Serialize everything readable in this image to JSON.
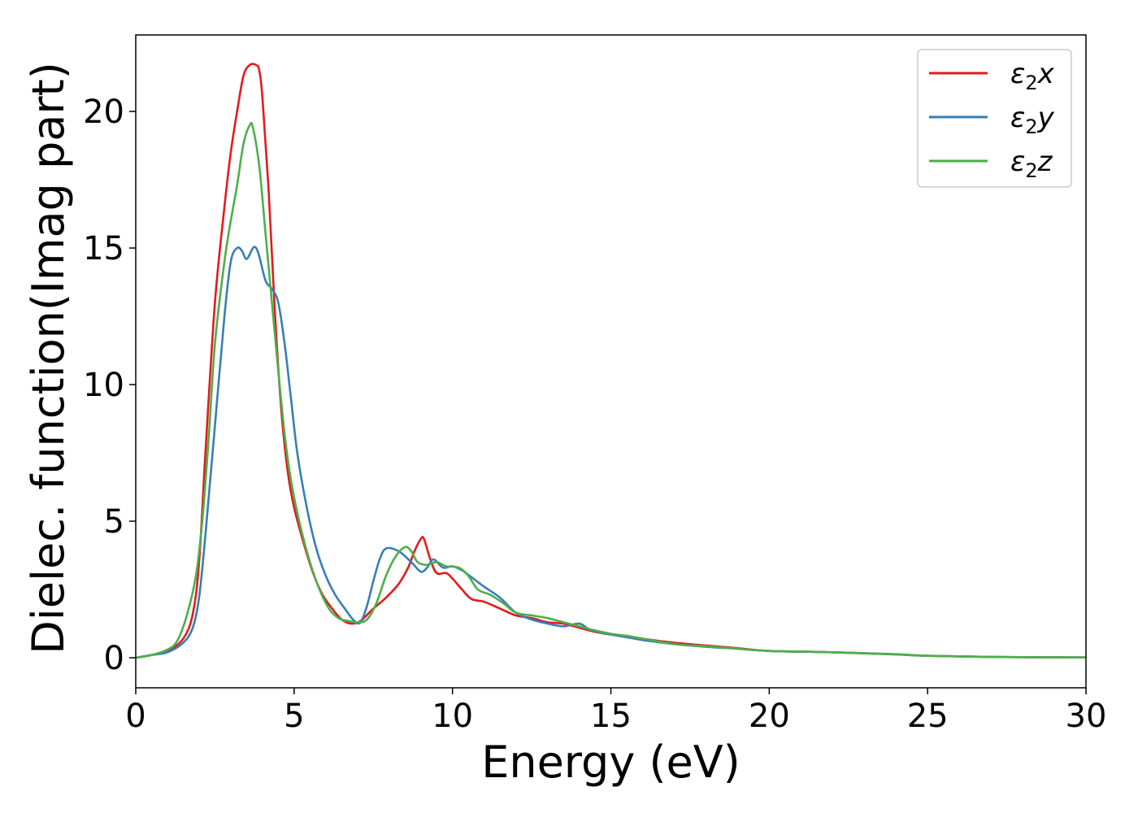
{
  "chart_data": {
    "type": "line",
    "title": "",
    "xlabel": "Energy (eV)",
    "ylabel": "Dielec. function(Imag part)",
    "xlim": [
      0,
      30
    ],
    "ylim": [
      -1.1,
      22.8
    ],
    "xticks": [
      0,
      5,
      10,
      15,
      20,
      25,
      30
    ],
    "yticks": [
      0,
      5,
      10,
      15,
      20
    ],
    "xtick_labels": [
      "0",
      "5",
      "10",
      "15",
      "20",
      "25",
      "30"
    ],
    "ytick_labels": [
      "0",
      "5",
      "10",
      "15",
      "20"
    ],
    "grid": false,
    "legend_position": "top-right",
    "series": [
      {
        "name": "ε2x",
        "name_main": "ε",
        "name_sub": "2",
        "name_tail": "x",
        "color": "#e41a1c",
        "points": [
          [
            0,
            0
          ],
          [
            0.5,
            0.1
          ],
          [
            1.0,
            0.25
          ],
          [
            1.5,
            0.7
          ],
          [
            1.8,
            1.6
          ],
          [
            2.0,
            3.5
          ],
          [
            2.2,
            7.5
          ],
          [
            2.5,
            13.0
          ],
          [
            2.8,
            16.5
          ],
          [
            3.0,
            18.5
          ],
          [
            3.2,
            20.0
          ],
          [
            3.4,
            21.3
          ],
          [
            3.6,
            21.7
          ],
          [
            3.8,
            21.7
          ],
          [
            3.9,
            21.5
          ],
          [
            4.0,
            20.5
          ],
          [
            4.2,
            17.0
          ],
          [
            4.4,
            12.5
          ],
          [
            4.6,
            9.0
          ],
          [
            4.8,
            6.8
          ],
          [
            5.0,
            5.5
          ],
          [
            5.3,
            4.2
          ],
          [
            5.6,
            3.1
          ],
          [
            5.9,
            2.3
          ],
          [
            6.2,
            1.8
          ],
          [
            6.5,
            1.4
          ],
          [
            6.8,
            1.25
          ],
          [
            7.1,
            1.35
          ],
          [
            7.5,
            1.8
          ],
          [
            7.9,
            2.2
          ],
          [
            8.3,
            2.7
          ],
          [
            8.6,
            3.3
          ],
          [
            8.8,
            3.9
          ],
          [
            9.0,
            4.35
          ],
          [
            9.1,
            4.35
          ],
          [
            9.3,
            3.6
          ],
          [
            9.5,
            3.1
          ],
          [
            9.8,
            3.1
          ],
          [
            10.0,
            2.9
          ],
          [
            10.3,
            2.5
          ],
          [
            10.6,
            2.15
          ],
          [
            11.0,
            2.05
          ],
          [
            11.5,
            1.8
          ],
          [
            12.0,
            1.55
          ],
          [
            12.5,
            1.45
          ],
          [
            13.0,
            1.3
          ],
          [
            13.5,
            1.25
          ],
          [
            14.0,
            1.1
          ],
          [
            14.5,
            0.95
          ],
          [
            15.0,
            0.85
          ],
          [
            15.5,
            0.8
          ],
          [
            16.0,
            0.7
          ],
          [
            17.0,
            0.55
          ],
          [
            18.0,
            0.45
          ],
          [
            19.0,
            0.35
          ],
          [
            20.0,
            0.25
          ],
          [
            22.0,
            0.2
          ],
          [
            24.0,
            0.12
          ],
          [
            25.0,
            0.07
          ],
          [
            27.0,
            0.03
          ],
          [
            30.0,
            0.01
          ]
        ]
      },
      {
        "name": "ε2y",
        "name_main": "ε",
        "name_sub": "2",
        "name_tail": "y",
        "color": "#377eb8",
        "points": [
          [
            0,
            0
          ],
          [
            0.5,
            0.1
          ],
          [
            1.0,
            0.2
          ],
          [
            1.5,
            0.55
          ],
          [
            1.8,
            1.1
          ],
          [
            2.0,
            2.2
          ],
          [
            2.2,
            4.5
          ],
          [
            2.5,
            8.5
          ],
          [
            2.8,
            12.5
          ],
          [
            3.0,
            14.5
          ],
          [
            3.2,
            15.0
          ],
          [
            3.35,
            14.9
          ],
          [
            3.5,
            14.6
          ],
          [
            3.7,
            15.0
          ],
          [
            3.8,
            15.0
          ],
          [
            3.9,
            14.7
          ],
          [
            4.1,
            13.8
          ],
          [
            4.3,
            13.5
          ],
          [
            4.5,
            13.0
          ],
          [
            4.7,
            11.5
          ],
          [
            4.9,
            9.5
          ],
          [
            5.1,
            7.5
          ],
          [
            5.4,
            5.5
          ],
          [
            5.7,
            4.0
          ],
          [
            6.0,
            3.0
          ],
          [
            6.3,
            2.3
          ],
          [
            6.6,
            1.8
          ],
          [
            6.9,
            1.35
          ],
          [
            7.1,
            1.3
          ],
          [
            7.3,
            1.9
          ],
          [
            7.5,
            2.8
          ],
          [
            7.7,
            3.6
          ],
          [
            7.9,
            4.0
          ],
          [
            8.3,
            3.9
          ],
          [
            8.7,
            3.5
          ],
          [
            9.0,
            3.15
          ],
          [
            9.2,
            3.3
          ],
          [
            9.4,
            3.6
          ],
          [
            9.7,
            3.3
          ],
          [
            10.0,
            3.35
          ],
          [
            10.3,
            3.2
          ],
          [
            10.6,
            2.95
          ],
          [
            11.0,
            2.6
          ],
          [
            11.5,
            2.2
          ],
          [
            12.0,
            1.65
          ],
          [
            12.5,
            1.4
          ],
          [
            13.0,
            1.25
          ],
          [
            13.5,
            1.15
          ],
          [
            14.0,
            1.25
          ],
          [
            14.3,
            1.05
          ],
          [
            14.6,
            0.95
          ],
          [
            15.0,
            0.85
          ],
          [
            15.5,
            0.75
          ],
          [
            16.0,
            0.65
          ],
          [
            17.0,
            0.5
          ],
          [
            18.0,
            0.4
          ],
          [
            19.0,
            0.33
          ],
          [
            20.0,
            0.25
          ],
          [
            22.0,
            0.2
          ],
          [
            24.0,
            0.13
          ],
          [
            25.0,
            0.07
          ],
          [
            27.0,
            0.03
          ],
          [
            30.0,
            0.01
          ]
        ]
      },
      {
        "name": "ε2z",
        "name_main": "ε",
        "name_sub": "2",
        "name_tail": "z",
        "color": "#4daf4a",
        "points": [
          [
            0,
            0
          ],
          [
            0.5,
            0.1
          ],
          [
            1.0,
            0.3
          ],
          [
            1.3,
            0.6
          ],
          [
            1.6,
            1.5
          ],
          [
            1.9,
            3.0
          ],
          [
            2.1,
            5.0
          ],
          [
            2.3,
            8.0
          ],
          [
            2.5,
            11.5
          ],
          [
            2.8,
            14.5
          ],
          [
            3.0,
            16.0
          ],
          [
            3.2,
            17.3
          ],
          [
            3.4,
            18.8
          ],
          [
            3.6,
            19.5
          ],
          [
            3.7,
            19.4
          ],
          [
            3.9,
            18.0
          ],
          [
            4.1,
            15.5
          ],
          [
            4.3,
            13.0
          ],
          [
            4.5,
            10.5
          ],
          [
            4.7,
            8.2
          ],
          [
            4.9,
            6.5
          ],
          [
            5.2,
            4.8
          ],
          [
            5.5,
            3.5
          ],
          [
            5.8,
            2.5
          ],
          [
            6.1,
            1.8
          ],
          [
            6.4,
            1.45
          ],
          [
            6.7,
            1.35
          ],
          [
            7.0,
            1.3
          ],
          [
            7.3,
            1.4
          ],
          [
            7.6,
            2.0
          ],
          [
            7.9,
            3.0
          ],
          [
            8.2,
            3.7
          ],
          [
            8.5,
            4.05
          ],
          [
            8.7,
            3.9
          ],
          [
            8.9,
            3.5
          ],
          [
            9.2,
            3.4
          ],
          [
            9.5,
            3.5
          ],
          [
            9.8,
            3.35
          ],
          [
            10.2,
            3.3
          ],
          [
            10.5,
            3.0
          ],
          [
            10.8,
            2.5
          ],
          [
            11.2,
            2.3
          ],
          [
            11.6,
            2.0
          ],
          [
            12.0,
            1.65
          ],
          [
            12.5,
            1.55
          ],
          [
            13.0,
            1.45
          ],
          [
            13.5,
            1.3
          ],
          [
            14.0,
            1.15
          ],
          [
            14.5,
            1.0
          ],
          [
            15.0,
            0.88
          ],
          [
            15.5,
            0.8
          ],
          [
            16.0,
            0.7
          ],
          [
            17.0,
            0.5
          ],
          [
            18.0,
            0.42
          ],
          [
            19.0,
            0.33
          ],
          [
            20.0,
            0.25
          ],
          [
            22.0,
            0.2
          ],
          [
            24.0,
            0.12
          ],
          [
            25.0,
            0.07
          ],
          [
            27.0,
            0.03
          ],
          [
            30.0,
            0.01
          ]
        ]
      }
    ]
  }
}
